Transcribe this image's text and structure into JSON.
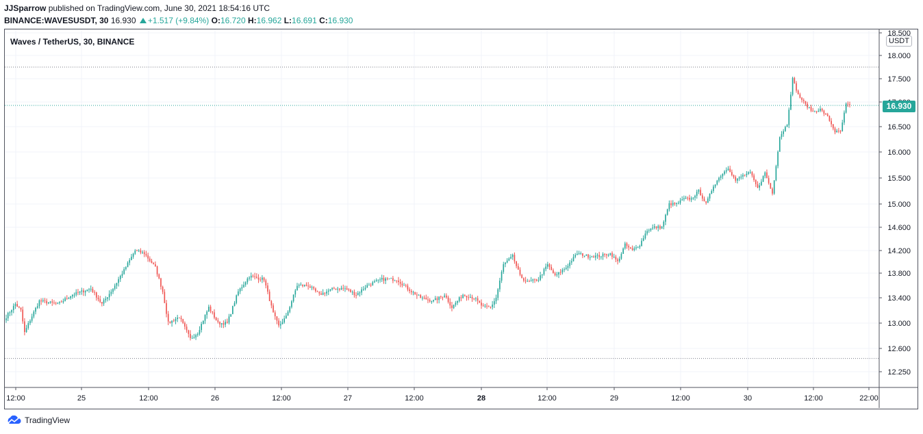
{
  "header": {
    "author": "JJSparrow",
    "published_text": "published on TradingView.com, June 30, 2021 18:54:16 UTC"
  },
  "quote": {
    "symbol": "BINANCE:WAVESUSDT, 30",
    "last": "16.930",
    "change": "+1.517 (+9.84%)",
    "open_label": "O:",
    "open": "16.720",
    "high_label": "H:",
    "high": "16.962",
    "low_label": "L:",
    "low": "16.691",
    "close_label": "C:",
    "close": "16.930"
  },
  "chart_title": "Waves / TetherUS, 30, BINANCE",
  "unit": "USDT",
  "current_price_badge": "16.930",
  "footer": {
    "brand": "TradingView"
  },
  "colors": {
    "up": "#26a69a",
    "down": "#ef5350",
    "grid": "#f0f3fa",
    "axis": "#50535e"
  },
  "chart_data": {
    "type": "candlestick",
    "y_ticks": [
      "12.250",
      "12.600",
      "13.000",
      "13.400",
      "13.800",
      "14.200",
      "14.600",
      "15.000",
      "15.500",
      "16.000",
      "16.500",
      "17.000",
      "17.500",
      "18.000",
      "18.500"
    ],
    "x_ticks": [
      {
        "label": "12:00",
        "bold": false
      },
      {
        "label": "25",
        "bold": false
      },
      {
        "label": "12:00",
        "bold": false
      },
      {
        "label": "26",
        "bold": false
      },
      {
        "label": "12:00",
        "bold": false
      },
      {
        "label": "27",
        "bold": false
      },
      {
        "label": "12:00",
        "bold": false
      },
      {
        "label": "28",
        "bold": true
      },
      {
        "label": "12:00",
        "bold": false
      },
      {
        "label": "29",
        "bold": false
      },
      {
        "label": "12:00",
        "bold": false
      },
      {
        "label": "30",
        "bold": false
      },
      {
        "label": "12:00",
        "bold": false
      },
      {
        "label": "22:00",
        "bold": false
      }
    ],
    "high_line": 17.75,
    "low_line": 12.45,
    "last_price": 16.93,
    "close_path": [
      [
        0,
        13.1
      ],
      [
        5,
        13.3
      ],
      [
        8,
        13.2
      ],
      [
        10,
        12.85
      ],
      [
        13,
        13.05
      ],
      [
        18,
        13.35
      ],
      [
        28,
        13.3
      ],
      [
        36,
        13.45
      ],
      [
        46,
        13.55
      ],
      [
        52,
        13.3
      ],
      [
        58,
        13.55
      ],
      [
        64,
        13.85
      ],
      [
        70,
        14.2
      ],
      [
        75,
        14.15
      ],
      [
        81,
        13.9
      ],
      [
        85,
        13.5
      ],
      [
        88,
        13.0
      ],
      [
        94,
        13.1
      ],
      [
        100,
        12.75
      ],
      [
        104,
        12.85
      ],
      [
        110,
        13.25
      ],
      [
        115,
        13.0
      ],
      [
        120,
        13.0
      ],
      [
        126,
        13.5
      ],
      [
        132,
        13.75
      ],
      [
        140,
        13.7
      ],
      [
        145,
        13.15
      ],
      [
        148,
        12.95
      ],
      [
        152,
        13.1
      ],
      [
        158,
        13.6
      ],
      [
        164,
        13.6
      ],
      [
        170,
        13.45
      ],
      [
        178,
        13.55
      ],
      [
        184,
        13.55
      ],
      [
        190,
        13.45
      ],
      [
        196,
        13.6
      ],
      [
        204,
        13.7
      ],
      [
        212,
        13.7
      ],
      [
        218,
        13.55
      ],
      [
        225,
        13.4
      ],
      [
        232,
        13.35
      ],
      [
        238,
        13.45
      ],
      [
        242,
        13.25
      ],
      [
        248,
        13.45
      ],
      [
        254,
        13.4
      ],
      [
        259,
        13.25
      ],
      [
        263,
        13.25
      ],
      [
        266,
        13.4
      ],
      [
        270,
        13.95
      ],
      [
        275,
        14.1
      ],
      [
        279,
        13.75
      ],
      [
        283,
        13.65
      ],
      [
        289,
        13.7
      ],
      [
        294,
        13.95
      ],
      [
        298,
        13.75
      ],
      [
        304,
        13.9
      ],
      [
        310,
        14.15
      ],
      [
        316,
        14.1
      ],
      [
        322,
        14.1
      ],
      [
        328,
        14.15
      ],
      [
        332,
        14.0
      ],
      [
        336,
        14.3
      ],
      [
        340,
        14.2
      ],
      [
        344,
        14.3
      ],
      [
        348,
        14.55
      ],
      [
        352,
        14.6
      ],
      [
        356,
        14.6
      ],
      [
        360,
        15.0
      ],
      [
        364,
        15.0
      ],
      [
        368,
        15.1
      ],
      [
        372,
        15.1
      ],
      [
        376,
        15.25
      ],
      [
        380,
        15.0
      ],
      [
        384,
        15.35
      ],
      [
        388,
        15.55
      ],
      [
        392,
        15.7
      ],
      [
        396,
        15.45
      ],
      [
        400,
        15.55
      ],
      [
        404,
        15.6
      ],
      [
        408,
        15.3
      ],
      [
        412,
        15.6
      ],
      [
        416,
        15.2
      ],
      [
        420,
        16.3
      ],
      [
        424,
        16.55
      ],
      [
        427,
        17.5
      ],
      [
        430,
        17.15
      ],
      [
        434,
        16.95
      ],
      [
        438,
        16.8
      ],
      [
        442,
        16.85
      ],
      [
        446,
        16.7
      ],
      [
        450,
        16.4
      ],
      [
        453,
        16.4
      ],
      [
        456,
        16.95
      ],
      [
        458,
        16.93
      ]
    ],
    "volatility": 0.05
  }
}
